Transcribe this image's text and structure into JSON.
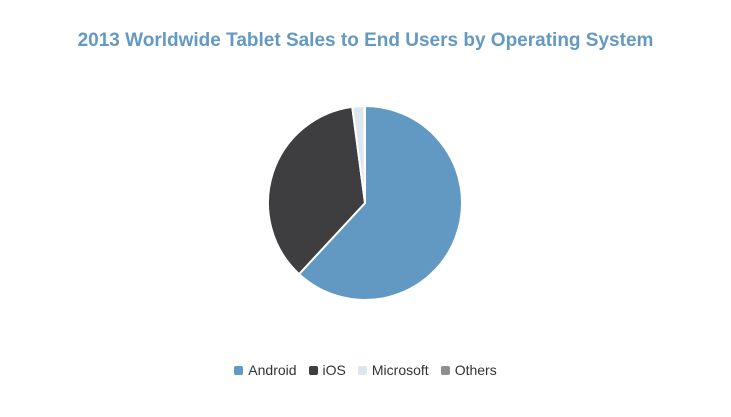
{
  "chart_data": {
    "type": "pie",
    "title": "2013 Worldwide Tablet Sales to End Users by Operating System",
    "categories": [
      "Android",
      "iOS",
      "Microsoft",
      "Others"
    ],
    "values": [
      61.9,
      36.0,
      2.0,
      0.1
    ],
    "colors": [
      "#6199c2",
      "#3e3e40",
      "#dde5ee",
      "#8f8f8f"
    ],
    "legend_position": "bottom"
  }
}
